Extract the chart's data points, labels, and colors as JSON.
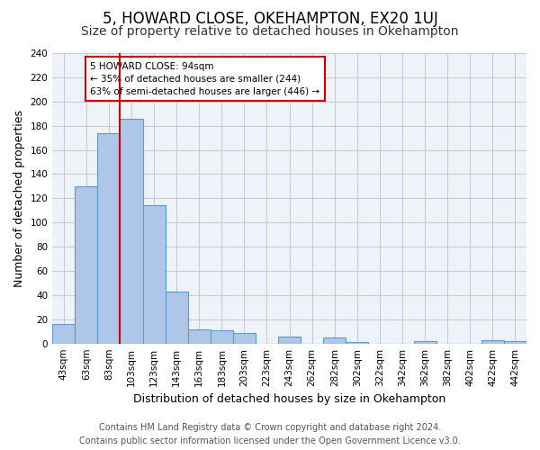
{
  "title": "5, HOWARD CLOSE, OKEHAMPTON, EX20 1UJ",
  "subtitle": "Size of property relative to detached houses in Okehampton",
  "xlabel": "Distribution of detached houses by size in Okehampton",
  "ylabel": "Number of detached properties",
  "bar_labels": [
    "43sqm",
    "63sqm",
    "83sqm",
    "103sqm",
    "123sqm",
    "143sqm",
    "163sqm",
    "183sqm",
    "203sqm",
    "223sqm",
    "243sqm",
    "262sqm",
    "282sqm",
    "302sqm",
    "322sqm",
    "342sqm",
    "362sqm",
    "382sqm",
    "402sqm",
    "422sqm",
    "442sqm"
  ],
  "bar_values": [
    16,
    130,
    174,
    186,
    114,
    43,
    12,
    11,
    9,
    0,
    6,
    0,
    5,
    1,
    0,
    0,
    2,
    0,
    0,
    3,
    2
  ],
  "bar_color": "#aec6e8",
  "bar_edge_color": "#5b9bd5",
  "vline_color": "#cc0000",
  "annotation_box_text": "5 HOWARD CLOSE: 94sqm\n← 35% of detached houses are smaller (244)\n63% of semi-detached houses are larger (446) →",
  "annotation_box_color": "#cc0000",
  "annotation_text_color": "#000000",
  "ylim": [
    0,
    240
  ],
  "yticks": [
    0,
    20,
    40,
    60,
    80,
    100,
    120,
    140,
    160,
    180,
    200,
    220,
    240
  ],
  "grid_color": "#cccccc",
  "bg_color": "#eef2f9",
  "footer_line1": "Contains HM Land Registry data © Crown copyright and database right 2024.",
  "footer_line2": "Contains public sector information licensed under the Open Government Licence v3.0.",
  "title_fontsize": 12,
  "subtitle_fontsize": 10,
  "axis_label_fontsize": 9,
  "tick_fontsize": 7.5,
  "footer_fontsize": 7
}
